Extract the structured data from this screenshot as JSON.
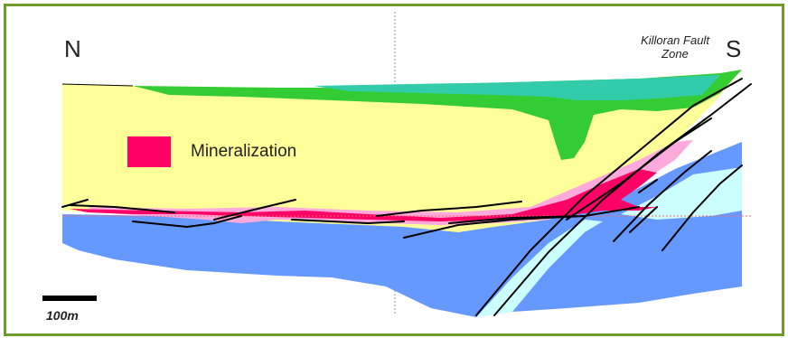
{
  "labels": {
    "north": "N",
    "south": "S",
    "fault_zone": "Killoran Fault\nZone",
    "legend_mineralization": "Mineralization",
    "scale": "100m"
  },
  "colors": {
    "frame_border": "#6f9a2e",
    "sandstone_yellow": "#ffff99",
    "green_cover": "#33cc33",
    "teal_cover": "#33ccaa",
    "basement_blue": "#6699ff",
    "cyan_zone": "#ccffff",
    "pink_alteration": "#ffaadd",
    "mineralization": "#ff0066",
    "faults": "#000000",
    "reference_lines": "#999999",
    "unconformity_dotted": "#ff6666"
  }
}
